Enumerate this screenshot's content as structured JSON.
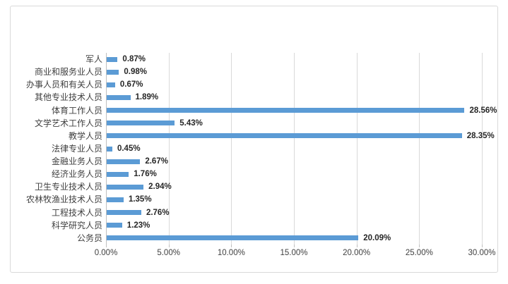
{
  "chart_data": {
    "type": "bar",
    "orientation": "horizontal",
    "title": "",
    "xlabel": "",
    "ylabel": "",
    "legend": "none",
    "grid": "vertical-only",
    "xlim": [
      0,
      30
    ],
    "x_ticks": [
      {
        "value": 0,
        "label": "0.00%"
      },
      {
        "value": 5,
        "label": "5.00%"
      },
      {
        "value": 10,
        "label": "10.00%"
      },
      {
        "value": 15,
        "label": "15.00%"
      },
      {
        "value": 20,
        "label": "20.00%"
      },
      {
        "value": 25,
        "label": "25.00%"
      },
      {
        "value": 30,
        "label": "30.00%"
      }
    ],
    "categories_top_to_bottom": [
      "军人",
      "商业和服务业人员",
      "办事人员和有关人员",
      "其他专业技术人员",
      "体育工作人员",
      "文学艺术工作人员",
      "教学人员",
      "法律专业人员",
      "金融业务人员",
      "经济业务人员",
      "卫生专业技术人员",
      "农林牧渔业技术人员",
      "工程技术人员",
      "科学研究人员",
      "公务员"
    ],
    "values_percent": [
      0.87,
      0.98,
      0.67,
      1.89,
      28.56,
      5.43,
      28.35,
      0.45,
      2.67,
      1.76,
      2.94,
      1.35,
      2.76,
      1.23,
      20.09
    ],
    "value_labels": [
      "0.87%",
      "0.98%",
      "0.67%",
      "1.89%",
      "28.56%",
      "5.43%",
      "28.35%",
      "0.45%",
      "2.67%",
      "1.76%",
      "2.94%",
      "1.35%",
      "2.76%",
      "1.23%",
      "20.09%"
    ],
    "colors": {
      "bar": "#5B9BD5",
      "gridline": "#D9D9D9",
      "axis_line": "#BFBFBF",
      "frame_border": "#D9D9D9",
      "axis_text": "#404040",
      "data_label_text": "#262626",
      "background": "#FFFFFF"
    }
  }
}
